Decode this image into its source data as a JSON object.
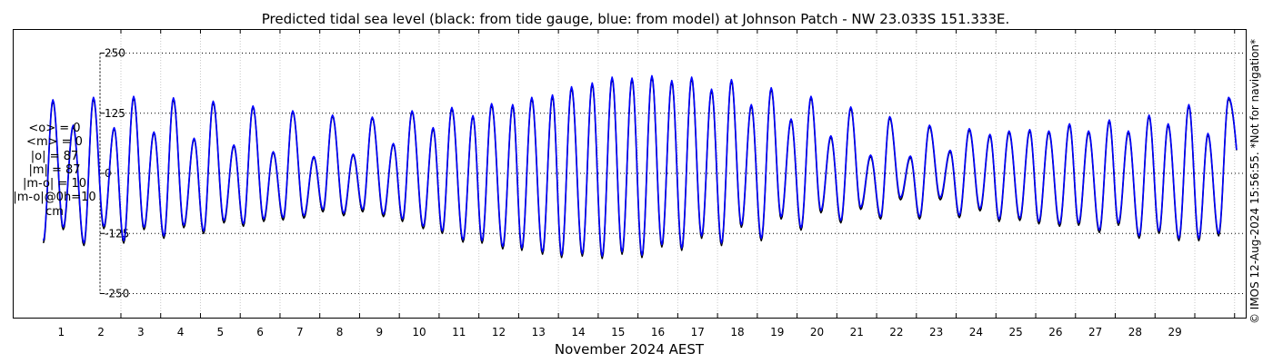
{
  "chart_data": {
    "type": "line",
    "title": "Predicted tidal sea level (black: from tide gauge, blue: from model) at Johnson Patch - NW 23.033S 151.333E.",
    "xlabel": "November 2024 AEST",
    "ylabel": "",
    "x_range_days": [
      -0.72,
      30.28
    ],
    "x_ticks": [
      "1",
      "2",
      "3",
      "4",
      "5",
      "6",
      "7",
      "8",
      "9",
      "10",
      "11",
      "12",
      "13",
      "14",
      "15",
      "16",
      "17",
      "18",
      "19",
      "20",
      "21",
      "22",
      "23",
      "24",
      "25",
      "26",
      "27",
      "28",
      "29"
    ],
    "ylim": [
      -300,
      300
    ],
    "y_ticks": [
      {
        "value": 250,
        "label": "250"
      },
      {
        "value": 125,
        "label": "125"
      },
      {
        "value": 0,
        "label": "0"
      },
      {
        "value": -125,
        "label": "-125"
      },
      {
        "value": -250,
        "label": "-250"
      }
    ],
    "grid": true,
    "series": [
      {
        "name": "from tide gauge",
        "color": "#000000",
        "highs": [
          [
            0.29,
            150
          ],
          [
            0.8,
            97
          ],
          [
            1.31,
            155
          ],
          [
            1.83,
            93
          ],
          [
            2.32,
            157
          ],
          [
            2.83,
            84
          ],
          [
            3.32,
            154
          ],
          [
            3.84,
            71
          ],
          [
            4.32,
            147
          ],
          [
            4.84,
            57
          ],
          [
            5.32,
            138
          ],
          [
            5.83,
            43
          ],
          [
            6.32,
            128
          ],
          [
            6.85,
            33
          ],
          [
            7.32,
            119
          ],
          [
            7.84,
            38
          ],
          [
            8.32,
            115
          ],
          [
            8.85,
            60
          ],
          [
            9.32,
            128
          ],
          [
            9.85,
            92
          ],
          [
            10.32,
            134
          ],
          [
            10.85,
            118
          ],
          [
            11.32,
            142
          ],
          [
            11.85,
            140
          ],
          [
            12.33,
            155
          ],
          [
            12.85,
            160
          ],
          [
            13.33,
            177
          ],
          [
            13.85,
            185
          ],
          [
            14.35,
            197
          ],
          [
            14.85,
            195
          ],
          [
            15.35,
            200
          ],
          [
            15.85,
            190
          ],
          [
            16.35,
            197
          ],
          [
            16.85,
            172
          ],
          [
            17.35,
            192
          ],
          [
            17.85,
            140
          ],
          [
            18.35,
            175
          ],
          [
            18.85,
            110
          ],
          [
            19.35,
            157
          ],
          [
            19.85,
            75
          ],
          [
            20.35,
            135
          ],
          [
            20.85,
            35
          ],
          [
            21.33,
            115
          ],
          [
            21.85,
            33
          ],
          [
            22.33,
            97
          ],
          [
            22.85,
            45
          ],
          [
            23.33,
            90
          ],
          [
            23.85,
            78
          ],
          [
            24.33,
            85
          ],
          [
            24.85,
            88
          ],
          [
            25.33,
            85
          ],
          [
            25.85,
            100
          ],
          [
            26.33,
            85
          ],
          [
            26.85,
            108
          ],
          [
            27.33,
            85
          ],
          [
            27.85,
            118
          ],
          [
            28.33,
            100
          ],
          [
            28.85,
            140
          ],
          [
            29.33,
            80
          ],
          [
            29.85,
            155
          ]
        ],
        "lows": [
          [
            0.05,
            -145
          ],
          [
            0.55,
            -117
          ],
          [
            1.07,
            -150
          ],
          [
            1.57,
            -115
          ],
          [
            2.07,
            -145
          ],
          [
            2.58,
            -117
          ],
          [
            3.08,
            -135
          ],
          [
            3.58,
            -113
          ],
          [
            4.08,
            -125
          ],
          [
            4.59,
            -103
          ],
          [
            5.08,
            -110
          ],
          [
            5.59,
            -100
          ],
          [
            6.08,
            -97
          ],
          [
            6.6,
            -93
          ],
          [
            7.08,
            -80
          ],
          [
            7.6,
            -88
          ],
          [
            8.08,
            -80
          ],
          [
            8.6,
            -90
          ],
          [
            9.08,
            -100
          ],
          [
            9.6,
            -115
          ],
          [
            10.08,
            -125
          ],
          [
            10.6,
            -143
          ],
          [
            11.08,
            -145
          ],
          [
            11.6,
            -157
          ],
          [
            12.08,
            -160
          ],
          [
            12.6,
            -168
          ],
          [
            13.08,
            -175
          ],
          [
            13.6,
            -172
          ],
          [
            14.1,
            -177
          ],
          [
            14.6,
            -168
          ],
          [
            15.1,
            -175
          ],
          [
            15.6,
            -153
          ],
          [
            16.1,
            -160
          ],
          [
            16.6,
            -135
          ],
          [
            17.1,
            -150
          ],
          [
            17.6,
            -112
          ],
          [
            18.1,
            -140
          ],
          [
            18.6,
            -95
          ],
          [
            19.1,
            -118
          ],
          [
            19.6,
            -82
          ],
          [
            20.1,
            -103
          ],
          [
            20.6,
            -75
          ],
          [
            21.1,
            -95
          ],
          [
            21.6,
            -55
          ],
          [
            22.08,
            -95
          ],
          [
            22.6,
            -55
          ],
          [
            23.08,
            -92
          ],
          [
            23.6,
            -78
          ],
          [
            24.08,
            -100
          ],
          [
            24.6,
            -98
          ],
          [
            25.08,
            -105
          ],
          [
            25.6,
            -110
          ],
          [
            26.08,
            -108
          ],
          [
            26.6,
            -123
          ],
          [
            27.08,
            -108
          ],
          [
            27.6,
            -135
          ],
          [
            28.1,
            -125
          ],
          [
            28.6,
            -140
          ],
          [
            29.1,
            -140
          ],
          [
            29.6,
            -130
          ]
        ]
      },
      {
        "name": "from model",
        "color": "#0000ff",
        "highs": [
          [
            0.29,
            153
          ],
          [
            0.8,
            100
          ],
          [
            1.31,
            158
          ],
          [
            1.83,
            95
          ],
          [
            2.32,
            160
          ],
          [
            2.83,
            86
          ],
          [
            3.32,
            157
          ],
          [
            3.84,
            73
          ],
          [
            4.32,
            150
          ],
          [
            4.84,
            59
          ],
          [
            5.32,
            140
          ],
          [
            5.83,
            45
          ],
          [
            6.32,
            130
          ],
          [
            6.85,
            35
          ],
          [
            7.32,
            121
          ],
          [
            7.84,
            40
          ],
          [
            8.32,
            117
          ],
          [
            8.85,
            62
          ],
          [
            9.32,
            130
          ],
          [
            9.85,
            95
          ],
          [
            10.32,
            137
          ],
          [
            10.85,
            120
          ],
          [
            11.32,
            145
          ],
          [
            11.85,
            143
          ],
          [
            12.33,
            158
          ],
          [
            12.85,
            163
          ],
          [
            13.33,
            180
          ],
          [
            13.85,
            188
          ],
          [
            14.35,
            200
          ],
          [
            14.85,
            198
          ],
          [
            15.35,
            203
          ],
          [
            15.85,
            193
          ],
          [
            16.35,
            200
          ],
          [
            16.85,
            175
          ],
          [
            17.35,
            195
          ],
          [
            17.85,
            143
          ],
          [
            18.35,
            178
          ],
          [
            18.85,
            113
          ],
          [
            19.35,
            160
          ],
          [
            19.85,
            78
          ],
          [
            20.35,
            138
          ],
          [
            20.85,
            38
          ],
          [
            21.33,
            118
          ],
          [
            21.85,
            36
          ],
          [
            22.33,
            100
          ],
          [
            22.85,
            48
          ],
          [
            23.33,
            93
          ],
          [
            23.85,
            81
          ],
          [
            24.33,
            88
          ],
          [
            24.85,
            91
          ],
          [
            25.33,
            88
          ],
          [
            25.85,
            103
          ],
          [
            26.33,
            88
          ],
          [
            26.85,
            111
          ],
          [
            27.33,
            88
          ],
          [
            27.85,
            121
          ],
          [
            28.33,
            103
          ],
          [
            28.85,
            143
          ],
          [
            29.33,
            83
          ],
          [
            29.85,
            158
          ]
        ],
        "lows": [
          [
            0.05,
            -140
          ],
          [
            0.55,
            -112
          ],
          [
            1.07,
            -145
          ],
          [
            1.57,
            -110
          ],
          [
            2.07,
            -140
          ],
          [
            2.58,
            -112
          ],
          [
            3.08,
            -130
          ],
          [
            3.58,
            -108
          ],
          [
            4.08,
            -120
          ],
          [
            4.59,
            -98
          ],
          [
            5.08,
            -105
          ],
          [
            5.59,
            -95
          ],
          [
            6.08,
            -92
          ],
          [
            6.6,
            -88
          ],
          [
            7.08,
            -75
          ],
          [
            7.6,
            -83
          ],
          [
            8.08,
            -75
          ],
          [
            8.6,
            -85
          ],
          [
            9.08,
            -95
          ],
          [
            9.6,
            -110
          ],
          [
            10.08,
            -120
          ],
          [
            10.6,
            -138
          ],
          [
            11.08,
            -140
          ],
          [
            11.6,
            -152
          ],
          [
            12.08,
            -155
          ],
          [
            12.6,
            -163
          ],
          [
            13.08,
            -170
          ],
          [
            13.6,
            -167
          ],
          [
            14.1,
            -172
          ],
          [
            14.6,
            -163
          ],
          [
            15.1,
            -170
          ],
          [
            15.6,
            -148
          ],
          [
            16.1,
            -155
          ],
          [
            16.6,
            -130
          ],
          [
            17.1,
            -145
          ],
          [
            17.6,
            -107
          ],
          [
            18.1,
            -135
          ],
          [
            18.6,
            -90
          ],
          [
            19.1,
            -113
          ],
          [
            19.6,
            -77
          ],
          [
            20.1,
            -98
          ],
          [
            20.6,
            -70
          ],
          [
            21.1,
            -90
          ],
          [
            21.6,
            -50
          ],
          [
            22.08,
            -90
          ],
          [
            22.6,
            -50
          ],
          [
            23.08,
            -87
          ],
          [
            23.6,
            -73
          ],
          [
            24.08,
            -95
          ],
          [
            24.6,
            -93
          ],
          [
            25.08,
            -100
          ],
          [
            25.6,
            -105
          ],
          [
            26.08,
            -103
          ],
          [
            26.6,
            -118
          ],
          [
            27.08,
            -103
          ],
          [
            27.6,
            -130
          ],
          [
            28.1,
            -120
          ],
          [
            28.6,
            -135
          ],
          [
            29.1,
            -135
          ],
          [
            29.6,
            -125
          ]
        ]
      }
    ]
  },
  "stats": {
    "lines": [
      "<o> = 0",
      "<m> = 0",
      "|o| = 87",
      "|m| = 87",
      "|m-o| = 10",
      "|m-o|@0h=10",
      "cm"
    ]
  },
  "copyright": "© IMOS 12-Aug-2024 15:56:55. *Not for navigation*"
}
